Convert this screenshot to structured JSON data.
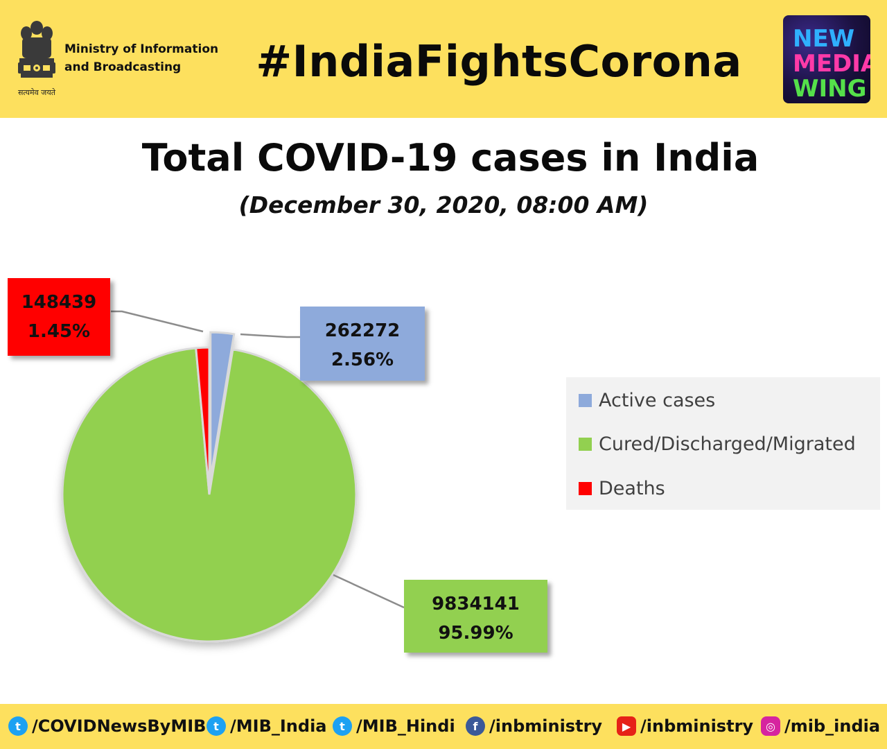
{
  "header": {
    "ministry_line1": "Ministry of Information",
    "ministry_line2": "and Broadcasting",
    "emblem_motto": "सत्यमेव जयते",
    "hashtag": "#IndiaFightsCorona",
    "logo_line1": "NEW",
    "logo_line2": "MEDIA",
    "logo_line3": "WING",
    "colors": {
      "background": "#fde05e"
    }
  },
  "title": "Total COVID-19 cases in India",
  "subtitle": "(December 30, 2020, 08:00 AM)",
  "chart_data": {
    "type": "pie",
    "title": "Total COVID-19 cases in India",
    "subtitle": "(December 30, 2020, 08:00 AM)",
    "categories": [
      "Active cases",
      "Cured/Discharged/Migrated",
      "Deaths"
    ],
    "values": [
      262272,
      9834141,
      148439
    ],
    "percentages": [
      "2.56%",
      "95.99%",
      "1.45%"
    ],
    "value_labels": [
      "262272",
      "9834141",
      "148439"
    ],
    "colors": [
      "#8eaadb",
      "#92d050",
      "#ff0000"
    ],
    "legend_position": "right",
    "exploded_slice": "Active cases"
  },
  "footer": {
    "handles": [
      {
        "icon": "twitter-icon",
        "text": "/COVIDNewsByMIB",
        "color": "#1da1f2"
      },
      {
        "icon": "twitter-icon",
        "text": "/MIB_India",
        "color": "#1da1f2"
      },
      {
        "icon": "twitter-icon",
        "text": "/MIB_Hindi",
        "color": "#1da1f2"
      },
      {
        "icon": "facebook-icon",
        "text": "/inbministry",
        "color": "#3b5998"
      },
      {
        "icon": "youtube-icon",
        "text": "/inbministry",
        "color": "#e62117"
      },
      {
        "icon": "instagram-icon",
        "text": "/mib_india",
        "color": "#d6249f"
      }
    ]
  }
}
